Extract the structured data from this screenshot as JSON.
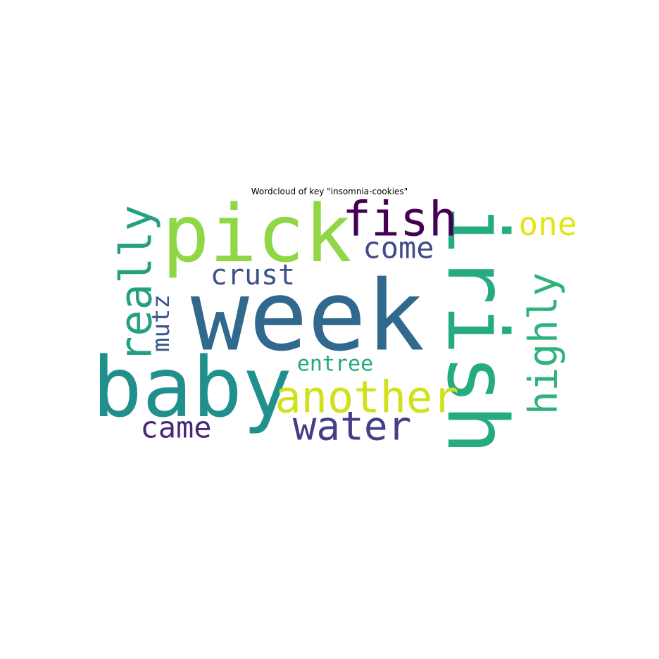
{
  "chart_data": {
    "type": "wordcloud",
    "title": "Wordcloud of key \"insomnia-cookies\"",
    "words": [
      {
        "text": "week",
        "color": "#31688e",
        "orientation": "horizontal"
      },
      {
        "text": "pick",
        "color": "#8fd744",
        "orientation": "horizontal"
      },
      {
        "text": "baby",
        "color": "#21908d",
        "orientation": "horizontal"
      },
      {
        "text": "irish",
        "color": "#25ab82",
        "orientation": "vertical"
      },
      {
        "text": "fish",
        "color": "#440154",
        "orientation": "horizontal"
      },
      {
        "text": "another",
        "color": "#d0e11c",
        "orientation": "horizontal"
      },
      {
        "text": "water",
        "color": "#433e85",
        "orientation": "horizontal"
      },
      {
        "text": "really",
        "color": "#23a082",
        "orientation": "vertical"
      },
      {
        "text": "highly",
        "color": "#2eb37c",
        "orientation": "vertical"
      },
      {
        "text": "come",
        "color": "#3e4c8a",
        "orientation": "horizontal"
      },
      {
        "text": "one",
        "color": "#e4e419",
        "orientation": "horizontal"
      },
      {
        "text": "crust",
        "color": "#3b528b",
        "orientation": "horizontal"
      },
      {
        "text": "came",
        "color": "#482878",
        "orientation": "horizontal"
      },
      {
        "text": "mutz",
        "color": "#3a548c",
        "orientation": "vertical"
      },
      {
        "text": "entree",
        "color": "#22a884",
        "orientation": "horizontal"
      }
    ]
  }
}
